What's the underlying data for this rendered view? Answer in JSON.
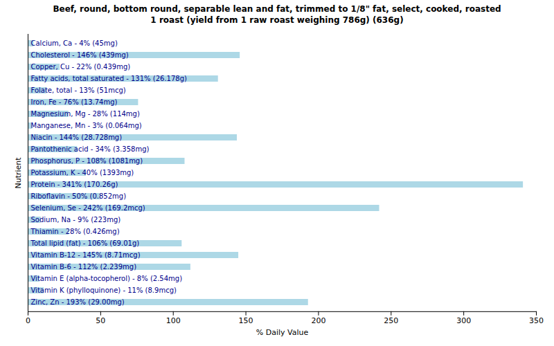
{
  "chart_data": {
    "type": "bar",
    "orientation": "horizontal",
    "title": "Beef, round, bottom round, separable lean and fat, trimmed to 1/8\" fat, select, cooked, roasted\n1 roast (yield from 1 raw roast weighing 786g) (636g)",
    "xlabel": "% Daily Value",
    "ylabel": "Nutrient",
    "categories": [
      "Calcium, Ca - 4% (45mg)",
      "Cholesterol - 146% (439mg)",
      "Copper, Cu - 22% (0.439mg)",
      "Fatty acids, total saturated - 131% (26.178g)",
      "Folate, total - 13% (51mcg)",
      "Iron, Fe - 76% (13.74mg)",
      "Magnesium, Mg - 28% (114mg)",
      "Manganese, Mn - 3% (0.064mg)",
      "Niacin - 144% (28.728mg)",
      "Pantothenic acid - 34% (3.358mg)",
      "Phosphorus, P - 108% (1081mg)",
      "Potassium, K - 40% (1393mg)",
      "Protein - 341% (170.26g)",
      "Riboflavin - 50% (0.852mg)",
      "Selenium, Se - 242% (169.2mcg)",
      "Sodium, Na - 9% (223mg)",
      "Thiamin - 28% (0.426mg)",
      "Total lipid (fat) - 106% (69.01g)",
      "Vitamin B-12 - 145% (8.71mcg)",
      "Vitamin B-6 - 112% (2.239mg)",
      "Vitamin E (alpha-tocopherol) - 8% (2.54mg)",
      "Vitamin K (phylloquinone) - 11% (8.9mcg)",
      "Zinc, Zn - 193% (29.00mg)"
    ],
    "values": [
      4,
      146,
      22,
      131,
      13,
      76,
      28,
      3,
      144,
      34,
      108,
      40,
      341,
      50,
      242,
      9,
      28,
      106,
      145,
      112,
      8,
      11,
      193
    ],
    "color": "#add8e6",
    "xlim": [
      0,
      350
    ],
    "xticks": [
      0,
      50,
      100,
      150,
      200,
      250,
      300,
      350
    ],
    "tick_labels": "x"
  }
}
